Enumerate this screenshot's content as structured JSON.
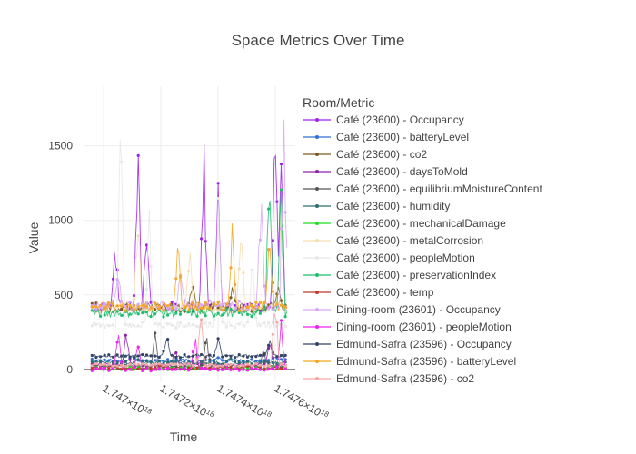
{
  "chart_data": {
    "type": "line",
    "title": "Space Metrics Over Time",
    "xlabel": "Time",
    "ylabel": "Value",
    "xlim": [
      1.74693e+18,
      1.74767e+18
    ],
    "ylim": [
      -80,
      1900
    ],
    "x_ticks": [
      {
        "value": 1.747e+18,
        "mantissa": "1.747",
        "exp": "18"
      },
      {
        "value": 1.7472e+18,
        "mantissa": "1.7472",
        "exp": "18"
      },
      {
        "value": 1.7474e+18,
        "mantissa": "1.7474",
        "exp": "18"
      },
      {
        "value": 1.7476e+18,
        "mantissa": "1.7476",
        "exp": "18"
      }
    ],
    "x_tick_times": "×10",
    "y_ticks": [
      0,
      500,
      1000,
      1500
    ],
    "grid": true,
    "legend": {
      "title": "Room/Metric",
      "placement": "right",
      "entries": [
        {
          "name": "Café (23600) - Occupancy",
          "color": "#a020f0"
        },
        {
          "name": "Café (23600) - batteryLevel",
          "color": "#2f6fd6"
        },
        {
          "name": "Café (23600) - co2",
          "color": "#7a5a1e"
        },
        {
          "name": "Café (23600) - daysToMold",
          "color": "#8e24aa"
        },
        {
          "name": "Café (23600) - equilibriumMoistureContent",
          "color": "#555555"
        },
        {
          "name": "Café (23600) - humidity",
          "color": "#2e6e6e"
        },
        {
          "name": "Café (23600) - mechanicalDamage",
          "color": "#22dd22"
        },
        {
          "name": "Café (23600) - metalCorrosion",
          "color": "#f5deb3"
        },
        {
          "name": "Café (23600) - peopleMotion",
          "color": "#e8e8e8"
        },
        {
          "name": "Café (23600) - preservationIndex",
          "color": "#1fbf6f"
        },
        {
          "name": "Café (23600) - temp",
          "color": "#c0392b"
        },
        {
          "name": "Dining-room (23601) - Occupancy",
          "color": "#d8a8f8"
        },
        {
          "name": "Dining-room (23601) - peopleMotion",
          "color": "#ee22ee"
        },
        {
          "name": "Edmund-Safra (23596) - Occupancy",
          "color": "#334466"
        },
        {
          "name": "Edmund-Safra (23596) - batteryLevel",
          "color": "#f5a623"
        },
        {
          "name": "Edmund-Safra (23596) - co2",
          "color": "#f4a6a6"
        }
      ]
    },
    "series": [
      {
        "name": "Café (23600) - Occupancy",
        "color": "#a020f0",
        "base": 420,
        "spikes": [
          [
            1.74704e+18,
            950
          ],
          [
            1.74712e+18,
            1560
          ],
          [
            1.74715e+18,
            1100
          ],
          [
            1.74735e+18,
            1680
          ],
          [
            1.7474e+18,
            1330
          ],
          [
            1.7476e+18,
            1800
          ],
          [
            1.74762e+18,
            1470
          ]
        ]
      },
      {
        "name": "Café (23600) - batteryLevel",
        "color": "#2f6fd6",
        "base": 60,
        "spikes": [
          [
            1.7471e+18,
            95
          ],
          [
            1.7474e+18,
            90
          ],
          [
            1.7476e+18,
            100
          ]
        ]
      },
      {
        "name": "Café (23600) - co2",
        "color": "#7a5a1e",
        "base": 420,
        "spikes": [
          [
            1.74731e+18,
            620
          ],
          [
            1.74745e+18,
            560
          ],
          [
            1.74761e+18,
            580
          ]
        ]
      },
      {
        "name": "Café (23600) - daysToMold",
        "color": "#8e24aa",
        "base": 30,
        "spikes": [
          [
            1.74708e+18,
            300
          ],
          [
            1.74725e+18,
            150
          ],
          [
            1.74758e+18,
            260
          ]
        ]
      },
      {
        "name": "Café (23600) - equilibriumMoistureContent",
        "color": "#555555",
        "base": 20,
        "spikes": [
          [
            1.74718e+18,
            250
          ],
          [
            1.74736e+18,
            230
          ],
          [
            1.74756e+18,
            150
          ]
        ]
      },
      {
        "name": "Café (23600) - humidity",
        "color": "#2e6e6e",
        "base": 45,
        "spikes": [
          [
            1.74712e+18,
            70
          ],
          [
            1.74744e+18,
            80
          ]
        ]
      },
      {
        "name": "Café (23600) - mechanicalDamage",
        "color": "#22dd22",
        "base": 5,
        "spikes": [
          [
            1.7473e+18,
            30
          ],
          [
            1.7476e+18,
            40
          ]
        ]
      },
      {
        "name": "Café (23600) - metalCorrosion",
        "color": "#f5deb3",
        "base": 410,
        "spikes": [
          [
            1.74712e+18,
            1200
          ],
          [
            1.7473e+18,
            900
          ],
          [
            1.74748e+18,
            1020
          ],
          [
            1.74762e+18,
            1250
          ]
        ]
      },
      {
        "name": "Café (23600) - peopleMotion",
        "color": "#e8e8e8",
        "base": 300,
        "spikes": [
          [
            1.74706e+18,
            1790
          ],
          [
            1.74716e+18,
            1280
          ],
          [
            1.7474e+18,
            1400
          ],
          [
            1.74752e+18,
            800
          ]
        ]
      },
      {
        "name": "Café (23600) - preservationIndex",
        "color": "#1fbf6f",
        "base": 380,
        "spikes": [
          [
            1.74758e+18,
            1650
          ],
          [
            1.74762e+18,
            1320
          ]
        ]
      },
      {
        "name": "Café (23600) - temp",
        "color": "#c0392b",
        "base": 10,
        "spikes": [
          [
            1.7472e+18,
            40
          ],
          [
            1.7475e+18,
            35
          ]
        ]
      },
      {
        "name": "Dining-room (23601) - Occupancy",
        "color": "#d8a8f8",
        "base": 430,
        "spikes": [
          [
            1.74705e+18,
            700
          ],
          [
            1.74727e+18,
            720
          ],
          [
            1.74755e+18,
            1300
          ],
          [
            1.74763e+18,
            1840
          ]
        ]
      },
      {
        "name": "Dining-room (23601) - peopleMotion",
        "color": "#ee22ee",
        "base": 0,
        "spikes": [
          [
            1.74705e+18,
            330
          ],
          [
            1.74712e+18,
            200
          ],
          [
            1.74732e+18,
            250
          ],
          [
            1.74762e+18,
            370
          ]
        ]
      },
      {
        "name": "Edmund-Safra (23596) - Occupancy",
        "color": "#334466",
        "base": 90,
        "spikes": [
          [
            1.74722e+18,
            250
          ],
          [
            1.7474e+18,
            230
          ],
          [
            1.74758e+18,
            240
          ]
        ]
      },
      {
        "name": "Edmund-Safra (23596) - batteryLevel",
        "color": "#f5a623",
        "base": 420,
        "spikes": [
          [
            1.74726e+18,
            900
          ],
          [
            1.74745e+18,
            1050
          ],
          [
            1.74758e+18,
            1000
          ]
        ]
      },
      {
        "name": "Edmund-Safra (23596) - co2",
        "color": "#f4a6a6",
        "base": 30,
        "spikes": [
          [
            1.74734e+18,
            400
          ],
          [
            1.7476e+18,
            550
          ]
        ]
      }
    ]
  }
}
